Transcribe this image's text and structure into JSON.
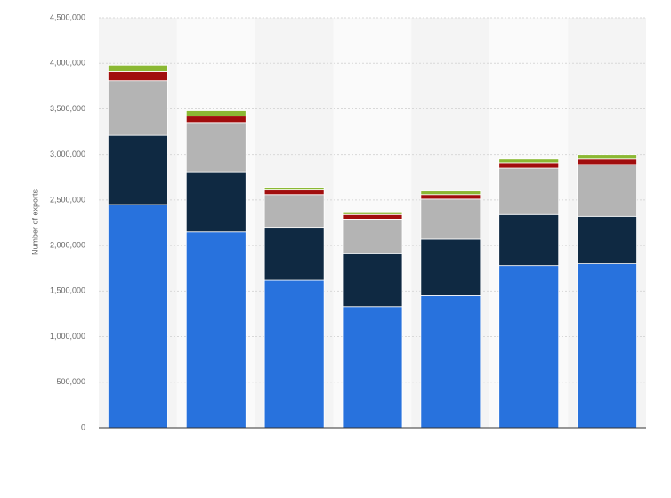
{
  "chart_data": {
    "type": "stacked_bar",
    "y_label": "Number of exports",
    "categories": [
      null,
      null,
      null,
      null,
      null,
      null,
      null
    ],
    "series": [
      {
        "color": "#2872dd",
        "values": [
          2450000,
          2150000,
          1620000,
          1330000,
          1450000,
          1780000,
          1800000
        ]
      },
      {
        "color": "#0f2942",
        "values": [
          760000,
          660000,
          580000,
          580000,
          620000,
          560000,
          520000
        ]
      },
      {
        "color": "#b4b4b4",
        "values": [
          600000,
          540000,
          360000,
          380000,
          440000,
          510000,
          570000
        ]
      },
      {
        "color": "#a10d0d",
        "values": [
          100000,
          70000,
          50000,
          50000,
          50000,
          60000,
          60000
        ]
      },
      {
        "color": "#8bb833",
        "values": [
          70000,
          60000,
          30000,
          30000,
          40000,
          40000,
          50000
        ]
      }
    ],
    "ylim": [
      0,
      4500000
    ],
    "yticks": [
      0,
      {
        "value": 500000,
        "label": "500,000"
      },
      {
        "value": 1000000,
        "label": "1,000,000"
      },
      {
        "value": 1500000,
        "label": "1,500,000"
      },
      {
        "value": 2000000,
        "label": "2,000,000"
      },
      {
        "value": 2500000,
        "label": "2,500,000"
      },
      {
        "value": 3000000,
        "label": "3,000,000"
      },
      {
        "value": 3500000,
        "label": "3,500,000"
      },
      {
        "value": 4000000,
        "label": "4,000,000"
      },
      {
        "value": 4500000,
        "label": "4,500,000"
      }
    ],
    "grid": true
  }
}
